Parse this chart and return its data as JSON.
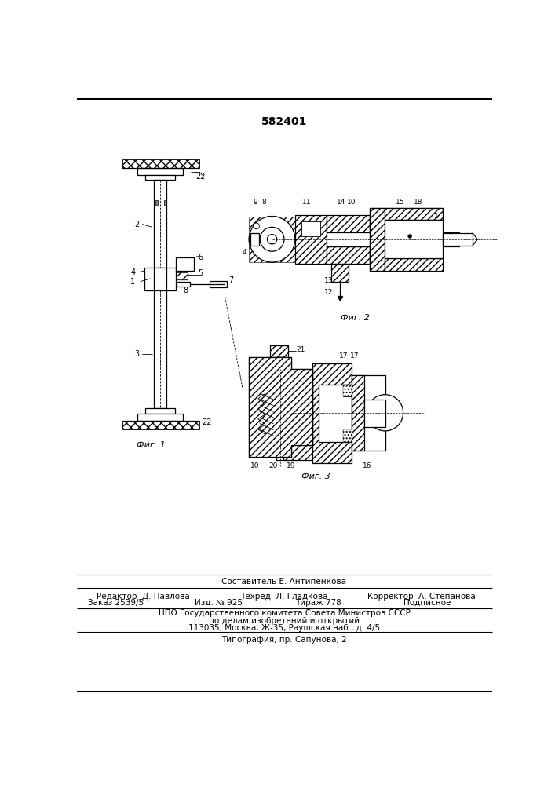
{
  "patent_number": "582401",
  "bg_color": "#ffffff",
  "line_color": "#000000",
  "fig_label1": "Фиг. 1",
  "fig_label2": "Фиг. 2",
  "fig_label3": "Фиг. 3",
  "footer_composer": "Составитель Е. Антипенкова",
  "footer_editor": "Редактор  Д. Павлова",
  "footer_tech": "Техред  Л. Гладкова",
  "footer_corr": "Корректор  А. Степанова",
  "footer_order": "Заказ 2539/5",
  "footer_izd": "Изд. № 925",
  "footer_tirazh": "Тираж 778",
  "footer_podp": "Подписное",
  "footer_npo": "НПО Государственного комитета Совета Министров СССР",
  "footer_dela": "по делам изобретений и открытий",
  "footer_addr": "113035, Москва, Ж-35, Раушская наб., д. 4/5",
  "footer_typo": "Типография, пр. Сапунова, 2"
}
